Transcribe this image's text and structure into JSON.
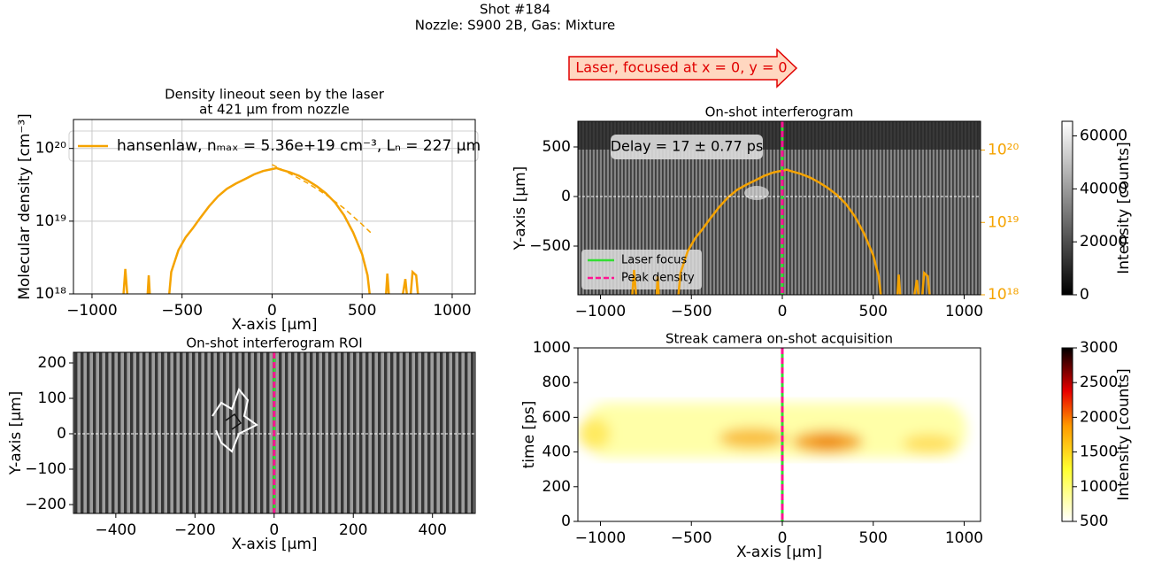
{
  "suptitle": [
    "Shot #184",
    "Nozzle: S900 2B, Gas: Mixture"
  ],
  "arrow_label": "Laser, focused at x = 0, y = 0",
  "chart_data": [
    {
      "type": "line",
      "title": [
        "Density lineout seen by the laser",
        "at 421 µm from nozzle"
      ],
      "xlabel": "X-axis [µm]",
      "ylabel": "Molecular density [cm⁻³]",
      "xlim": [
        -1103,
        1128
      ],
      "ylim": [
        1e+18,
        2.5e+20
      ],
      "ylog": true,
      "xticks": [
        {
          "value": -1000,
          "label": "−1000"
        },
        {
          "value": -500,
          "label": "−500"
        },
        0,
        500,
        1000
      ],
      "yticks": [
        {
          "value": 1e+18,
          "label": "10¹⁸"
        },
        {
          "value": 1e+19,
          "label": "10¹⁹"
        },
        {
          "value": 1e+20,
          "label": "10²⁰"
        }
      ],
      "grid": true,
      "legend": "upper center",
      "series": [
        {
          "name": "hansenlaw, nₘₐₓ = 5.36e+19 cm⁻³, Lₙ = 227 µm",
          "color": "#f5a300",
          "x": [
            -840,
            -815,
            -795,
            -700,
            -685,
            -670,
            -590,
            -560,
            -520,
            -480,
            -440,
            -400,
            -350,
            -300,
            -250,
            -200,
            -150,
            -100,
            -50,
            0,
            25,
            50,
            100,
            150,
            200,
            250,
            300,
            350,
            400,
            450,
            500,
            530,
            560,
            620,
            640,
            660,
            700,
            740,
            760,
            780,
            800,
            830
          ],
          "values": [
            3e+17,
            2.2e+18,
            5e+17,
            4e+17,
            1.8e+18,
            4e+17,
            3e+17,
            2e+18,
            4e+18,
            6e+18,
            8e+18,
            1.1e+19,
            1.6e+19,
            2.2e+19,
            2.8e+19,
            3.3e+19,
            3.8e+19,
            4.4e+19,
            4.9e+19,
            5.2e+19,
            5.36e+19,
            5.1e+19,
            4.7e+19,
            4.2e+19,
            3.6e+19,
            3e+19,
            2.4e+19,
            1.8e+19,
            1.2e+19,
            7e+18,
            3.5e+18,
            1.8e+18,
            4e+17,
            3e+17,
            1.9e+18,
            4e+17,
            4e+17,
            1.6e+18,
            5e+17,
            2e+18,
            1.8e+18,
            3e+17
          ]
        },
        {
          "color": "#f5a300",
          "dashed": true,
          "x": [
            0,
            100,
            200,
            300,
            400,
            500,
            560
          ],
          "values": [
            6e+19,
            4.5e+19,
            3.3e+19,
            2.3e+19,
            1.5e+19,
            9e+18,
            6.5e+18
          ]
        }
      ]
    },
    {
      "type": "image",
      "title": "On-shot interferogram",
      "ylabel": "Y-axis [µm]",
      "xlim": [
        -1124,
        1090
      ],
      "ylim": [
        -991,
        759
      ],
      "xticks": [
        {
          "value": -1000,
          "label": "−1000"
        },
        {
          "value": -500,
          "label": "−500"
        },
        0,
        500,
        1000
      ],
      "yticks": [
        {
          "value": -500,
          "label": "−500"
        },
        0,
        500
      ],
      "y2lim": [
        1e+18,
        2.5e+20
      ],
      "y2log": true,
      "y2color": "#f5a300",
      "y2ticks": [
        {
          "value": 1e+18,
          "label": "10¹⁸"
        },
        {
          "value": 1e+19,
          "label": "10¹⁹"
        },
        {
          "value": 1e+20,
          "label": "10²⁰"
        }
      ],
      "hline": 0,
      "vlines": [
        {
          "name": "Laser focus",
          "color": "#33dd33",
          "x": 0
        },
        {
          "name": "Peak density",
          "color": "#ff1493",
          "x": 0,
          "dashed": true
        }
      ],
      "legend": "lower left",
      "annotation": "Delay = 17 ± 0.77 ps",
      "colorbar": {
        "label": "Intensity [counts]",
        "clim": [
          0,
          65535
        ],
        "ticks": [
          0,
          20000,
          40000,
          60000
        ]
      }
    },
    {
      "type": "image",
      "title": "On-shot interferogram ROI",
      "xlabel": "X-axis [µm]",
      "ylabel": "Y-axis [µm]",
      "xlim": [
        -507,
        508
      ],
      "ylim": [
        -225,
        230
      ],
      "xticks": [
        {
          "value": -400,
          "label": "−400"
        },
        {
          "value": -200,
          "label": "−200"
        },
        0,
        200,
        400
      ],
      "yticks": [
        {
          "value": -200,
          "label": "−200"
        },
        {
          "value": -100,
          "label": "−100"
        },
        0,
        100,
        200
      ],
      "hline": 0,
      "vlines": [
        {
          "color": "#33dd33",
          "x": 0
        },
        {
          "color": "#ff1493",
          "x": 0,
          "dashed": true
        }
      ]
    },
    {
      "type": "image",
      "title": "Streak camera on-shot acquisition",
      "xlabel": "X-axis [µm]",
      "ylabel": "time [ps]",
      "xlim": [
        -1124,
        1090
      ],
      "ylim": [
        0,
        1000
      ],
      "xticks": [
        {
          "value": -1000,
          "label": "−1000"
        },
        {
          "value": -500,
          "label": "−500"
        },
        0,
        500,
        1000
      ],
      "yticks": [
        0,
        200,
        400,
        600,
        800,
        1000
      ],
      "vlines": [
        {
          "color": "#33dd33",
          "x": 0
        },
        {
          "color": "#ff1493",
          "x": 0,
          "dashed": true
        }
      ],
      "colorbar": {
        "label": "Intensity [counts]",
        "clim": [
          500,
          3000
        ],
        "ticks": [
          500,
          1000,
          1500,
          2000,
          2500,
          3000
        ]
      }
    }
  ]
}
